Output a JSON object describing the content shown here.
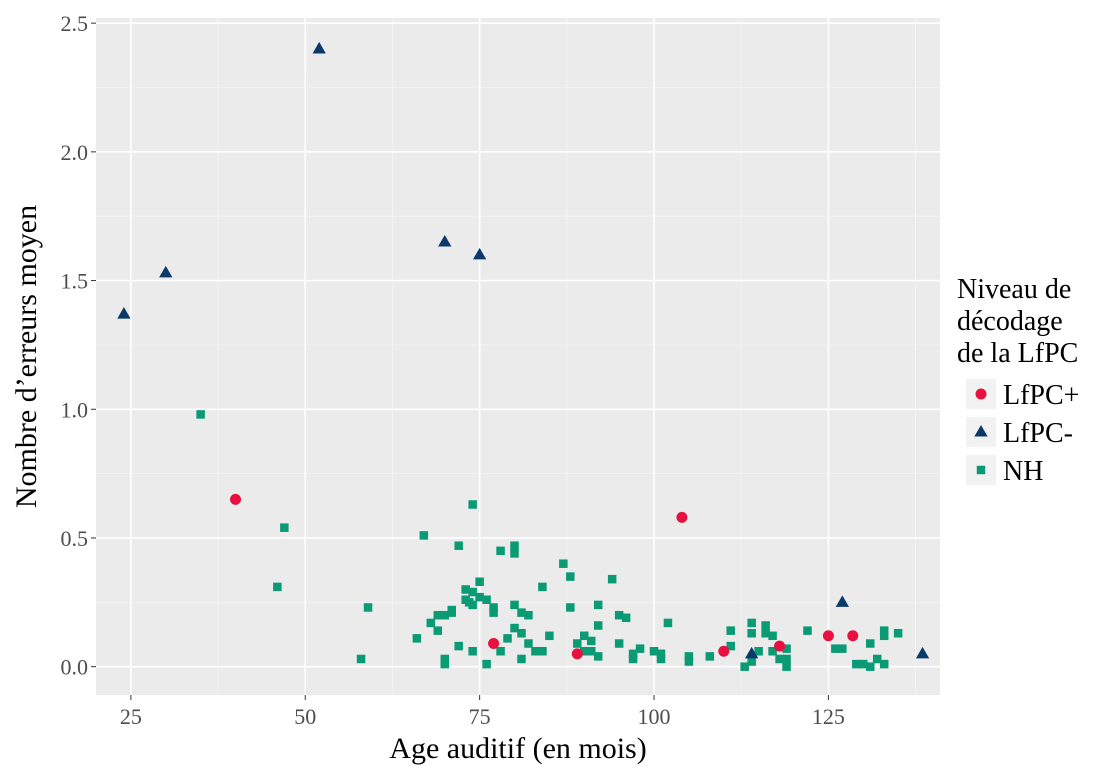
{
  "chart_data": {
    "type": "scatter",
    "title": "",
    "xlabel": "Age auditif (en mois)",
    "ylabel": "Nombre d’erreurs moyen",
    "xlim": [
      20,
      141
    ],
    "ylim": [
      -0.11,
      2.52
    ],
    "x_ticks": [
      25,
      50,
      75,
      100,
      125
    ],
    "x_tick_labels": [
      "25",
      "50",
      "75",
      "100",
      "125"
    ],
    "y_ticks": [
      0.0,
      0.5,
      1.0,
      1.5,
      2.0,
      2.5
    ],
    "y_tick_labels": [
      "0.0",
      "0.5",
      "1.0",
      "1.5",
      "2.0",
      "2.5"
    ],
    "grid": true,
    "background": "#ebebeb",
    "legend": {
      "title_lines": [
        "Niveau de",
        "décodage",
        "de la LfPC"
      ],
      "position": "right"
    },
    "series": [
      {
        "name": "LfPC+",
        "shape": "circle",
        "color": "#e8103f",
        "points": [
          [
            40,
            0.65
          ],
          [
            77,
            0.09
          ],
          [
            89,
            0.05
          ],
          [
            104,
            0.58
          ],
          [
            110,
            0.06
          ],
          [
            118,
            0.08
          ],
          [
            125,
            0.12
          ],
          [
            128.5,
            0.12
          ]
        ]
      },
      {
        "name": "LfPC-",
        "shape": "triangle",
        "color": "#0b3a6a",
        "points": [
          [
            24,
            1.37
          ],
          [
            30,
            1.53
          ],
          [
            52,
            2.4
          ],
          [
            70,
            1.65
          ],
          [
            75,
            1.6
          ],
          [
            114,
            0.05
          ],
          [
            127,
            0.25
          ],
          [
            138.5,
            0.05
          ]
        ]
      },
      {
        "name": "NH",
        "shape": "square",
        "color": "#0a9a74",
        "points": [
          [
            35,
            0.98
          ],
          [
            46,
            0.31
          ],
          [
            47,
            0.54
          ],
          [
            58,
            0.03
          ],
          [
            59,
            0.23
          ],
          [
            66,
            0.11
          ],
          [
            67,
            0.51
          ],
          [
            68,
            0.17
          ],
          [
            69,
            0.14
          ],
          [
            69,
            0.2
          ],
          [
            70,
            0.2
          ],
          [
            70,
            0.03
          ],
          [
            70,
            0.01
          ],
          [
            71,
            0.21
          ],
          [
            71,
            0.22
          ],
          [
            72,
            0.47
          ],
          [
            72,
            0.08
          ],
          [
            73,
            0.3
          ],
          [
            73,
            0.26
          ],
          [
            73.5,
            0.25
          ],
          [
            74,
            0.63
          ],
          [
            74,
            0.29
          ],
          [
            74,
            0.24
          ],
          [
            74,
            0.06
          ],
          [
            75,
            0.33
          ],
          [
            75,
            0.27
          ],
          [
            76,
            0.26
          ],
          [
            76,
            0.01
          ],
          [
            77,
            0.23
          ],
          [
            77,
            0.21
          ],
          [
            78,
            0.45
          ],
          [
            78,
            0.06
          ],
          [
            79,
            0.11
          ],
          [
            80,
            0.47
          ],
          [
            80,
            0.44
          ],
          [
            80,
            0.24
          ],
          [
            80,
            0.15
          ],
          [
            81,
            0.21
          ],
          [
            81,
            0.13
          ],
          [
            81,
            0.03
          ],
          [
            82,
            0.2
          ],
          [
            82,
            0.09
          ],
          [
            83,
            0.06
          ],
          [
            84,
            0.06
          ],
          [
            84,
            0.31
          ],
          [
            85,
            0.12
          ],
          [
            87,
            0.4
          ],
          [
            88,
            0.35
          ],
          [
            88,
            0.23
          ],
          [
            89,
            0.09
          ],
          [
            90,
            0.12
          ],
          [
            90,
            0.06
          ],
          [
            91,
            0.1
          ],
          [
            91,
            0.06
          ],
          [
            92,
            0.24
          ],
          [
            92,
            0.16
          ],
          [
            92,
            0.04
          ],
          [
            94,
            0.34
          ],
          [
            95,
            0.2
          ],
          [
            95,
            0.09
          ],
          [
            96,
            0.19
          ],
          [
            97,
            0.05
          ],
          [
            97,
            0.03
          ],
          [
            98,
            0.07
          ],
          [
            100,
            0.06
          ],
          [
            101,
            0.03
          ],
          [
            101,
            0.05
          ],
          [
            102,
            0.17
          ],
          [
            105,
            0.04
          ],
          [
            105,
            0.02
          ],
          [
            108,
            0.04
          ],
          [
            111,
            0.14
          ],
          [
            111,
            0.08
          ],
          [
            113,
            0.0
          ],
          [
            114,
            0.17
          ],
          [
            114,
            0.13
          ],
          [
            114,
            0.02
          ],
          [
            115,
            0.06
          ],
          [
            116,
            0.16
          ],
          [
            116,
            0.13
          ],
          [
            117,
            0.12
          ],
          [
            117,
            0.06
          ],
          [
            118,
            0.03
          ],
          [
            119,
            0.07
          ],
          [
            119,
            0.03
          ],
          [
            119,
            0.0
          ],
          [
            122,
            0.14
          ],
          [
            126,
            0.07
          ],
          [
            127,
            0.07
          ],
          [
            129,
            0.01
          ],
          [
            130,
            0.01
          ],
          [
            131,
            0.09
          ],
          [
            131,
            0.0
          ],
          [
            132,
            0.03
          ],
          [
            133,
            0.14
          ],
          [
            133,
            0.12
          ],
          [
            133,
            0.01
          ],
          [
            135,
            0.13
          ]
        ]
      }
    ]
  }
}
